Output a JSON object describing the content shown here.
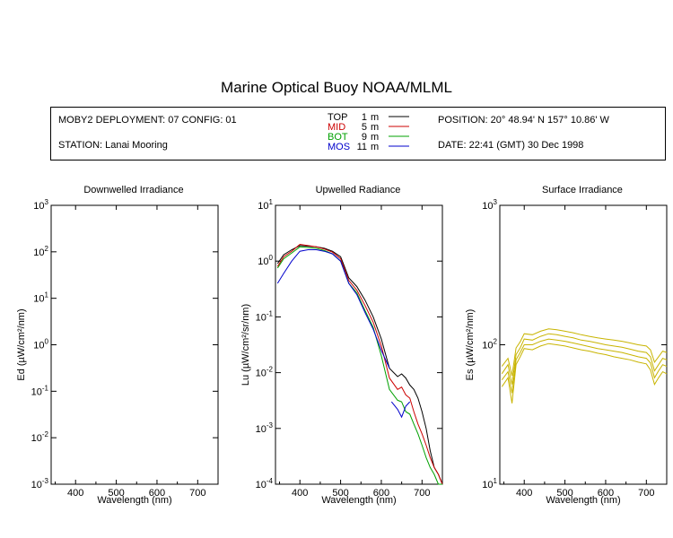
{
  "title": "Marine Optical Buoy NOAA/MLML",
  "info": {
    "deployment": "MOBY2 DEPLOYMENT: 07 CONFIG: 01",
    "station": "STATION: Lanai Mooring",
    "position": "POSITION: 20° 48.94' N   157° 10.86' W",
    "date": "DATE: 22:41 (GMT) 30 Dec 1998",
    "legend": [
      {
        "name": "TOP",
        "depth": "1",
        "unit": "m",
        "color": "#000000"
      },
      {
        "name": "MID",
        "depth": "5",
        "unit": "m",
        "color": "#cc0000"
      },
      {
        "name": "BOT",
        "depth": "9",
        "unit": "m",
        "color": "#00a000"
      },
      {
        "name": "MOS",
        "depth": "11",
        "unit": "m",
        "color": "#0000cc"
      }
    ]
  },
  "chart_data": [
    {
      "type": "line",
      "title": "Downwelled Irradiance",
      "xlabel": "Wavelength (nm)",
      "ylabel": "Ed  (µW/cm²/nm)",
      "xlim": [
        340,
        750
      ],
      "ylim": [
        0.001,
        1000
      ],
      "yscale": "log",
      "xticks": [
        "400",
        "500",
        "600",
        "700"
      ],
      "yticks": [
        "10^-3",
        "10^-2",
        "10^-1",
        "10^0",
        "10^1",
        "10^2",
        "10^3"
      ],
      "series": []
    },
    {
      "type": "line",
      "title": "Upwelled Radiance",
      "xlabel": "Wavelength (nm)",
      "ylabel": "Lu  (µW/cm²/sr/nm)",
      "xlim": [
        340,
        750
      ],
      "ylim": [
        0.0001,
        10
      ],
      "yscale": "log",
      "xticks": [
        "400",
        "500",
        "600",
        "700"
      ],
      "yticks": [
        "10^-4",
        "10^-3",
        "10^-2",
        "10^-1",
        "10^0",
        "10^1"
      ],
      "series": [
        {
          "name": "TOP",
          "color": "#000000",
          "x": [
            345,
            360,
            380,
            400,
            420,
            440,
            460,
            480,
            500,
            520,
            540,
            560,
            580,
            600,
            620,
            640,
            650,
            660,
            670,
            680,
            690,
            700,
            710,
            720,
            730,
            740,
            750
          ],
          "y": [
            0.9,
            1.3,
            1.6,
            1.9,
            1.85,
            1.8,
            1.7,
            1.5,
            1.2,
            0.5,
            0.35,
            0.2,
            0.1,
            0.04,
            0.012,
            0.0085,
            0.0095,
            0.008,
            0.006,
            0.005,
            0.0035,
            0.002,
            0.001,
            0.0004,
            0.0002,
            0.00015,
            0.0001
          ]
        },
        {
          "name": "MID",
          "color": "#cc0000",
          "x": [
            345,
            360,
            380,
            400,
            420,
            440,
            460,
            480,
            500,
            520,
            540,
            560,
            580,
            600,
            620,
            640,
            650,
            660,
            670,
            680,
            690,
            700,
            710,
            720,
            730,
            740,
            750
          ],
          "y": [
            0.8,
            1.2,
            1.5,
            2.0,
            1.9,
            1.8,
            1.65,
            1.45,
            1.1,
            0.45,
            0.3,
            0.16,
            0.08,
            0.03,
            0.008,
            0.005,
            0.0055,
            0.004,
            0.0035,
            0.002,
            0.0012,
            0.0008,
            0.0005,
            0.0003,
            0.0002,
            0.00015,
            0.0001
          ]
        },
        {
          "name": "BOT",
          "color": "#00a000",
          "x": [
            345,
            360,
            380,
            400,
            420,
            440,
            460,
            480,
            500,
            520,
            540,
            560,
            580,
            600,
            620,
            640,
            650,
            660,
            670,
            680,
            690,
            700,
            710,
            720,
            730,
            740,
            750
          ],
          "y": [
            0.75,
            1.1,
            1.4,
            1.8,
            1.75,
            1.7,
            1.55,
            1.35,
            1.0,
            0.4,
            0.27,
            0.13,
            0.065,
            0.02,
            0.005,
            0.0032,
            0.003,
            0.002,
            0.0018,
            0.0012,
            0.0008,
            0.0005,
            0.0003,
            0.0002,
            0.00015,
            0.0001,
            0.0001
          ]
        },
        {
          "name": "MOS",
          "color": "#0000cc",
          "x": [
            345,
            360,
            380,
            400,
            420,
            440,
            460,
            480,
            500,
            520,
            540,
            560,
            580,
            600,
            620
          ],
          "y": [
            0.4,
            0.6,
            1.0,
            1.5,
            1.6,
            1.6,
            1.5,
            1.35,
            1.0,
            0.4,
            0.25,
            0.12,
            0.06,
            0.025,
            0.012
          ]
        },
        {
          "name": "MOS",
          "color": "#0000cc",
          "x": [
            625,
            640,
            650,
            660,
            670
          ],
          "y": [
            0.003,
            0.0022,
            0.0016,
            0.0025,
            0.003
          ]
        }
      ]
    },
    {
      "type": "line",
      "title": "Surface Irradiance",
      "xlabel": "Wavelength (nm)",
      "ylabel": "Es  (µW/cm²/nm)",
      "xlim": [
        340,
        750
      ],
      "ylim": [
        10,
        1000
      ],
      "yscale": "log",
      "xticks": [
        "400",
        "500",
        "600",
        "700"
      ],
      "yticks": [
        "10^1",
        "10^2",
        "10^3"
      ],
      "series": [
        {
          "color": "#c8b400",
          "x": [
            345,
            360,
            370,
            380,
            390,
            400,
            420,
            440,
            460,
            480,
            500,
            520,
            540,
            560,
            580,
            600,
            620,
            640,
            660,
            680,
            700,
            710,
            720,
            730,
            740,
            750
          ],
          "y": [
            70,
            80,
            60,
            95,
            105,
            120,
            118,
            125,
            130,
            128,
            125,
            122,
            118,
            115,
            112,
            110,
            108,
            106,
            103,
            100,
            98,
            92,
            75,
            82,
            90,
            88
          ]
        },
        {
          "color": "#c8b400",
          "x": [
            345,
            360,
            370,
            380,
            390,
            400,
            420,
            440,
            460,
            480,
            500,
            520,
            540,
            560,
            580,
            600,
            620,
            640,
            660,
            680,
            700,
            710,
            720,
            730,
            740,
            750
          ],
          "y": [
            62,
            72,
            52,
            85,
            95,
            110,
            108,
            115,
            120,
            118,
            115,
            112,
            108,
            106,
            103,
            100,
            98,
            96,
            93,
            90,
            88,
            82,
            65,
            72,
            80,
            78
          ]
        },
        {
          "color": "#c8b400",
          "x": [
            345,
            360,
            370,
            380,
            390,
            400,
            420,
            440,
            460,
            480,
            500,
            520,
            540,
            560,
            580,
            600,
            620,
            640,
            660,
            680,
            700,
            710,
            720,
            730,
            740,
            750
          ],
          "y": [
            56,
            64,
            45,
            78,
            88,
            100,
            100,
            106,
            110,
            108,
            106,
            103,
            100,
            97,
            94,
            92,
            90,
            88,
            85,
            82,
            80,
            74,
            58,
            65,
            72,
            70
          ]
        },
        {
          "color": "#c8b400",
          "x": [
            345,
            360,
            370,
            380,
            390,
            400,
            420,
            440,
            460,
            480,
            500,
            520,
            540,
            560,
            580,
            600,
            620,
            640,
            660,
            680,
            700,
            710,
            720,
            730,
            740,
            750
          ],
          "y": [
            50,
            58,
            38,
            72,
            82,
            94,
            92,
            98,
            102,
            100,
            98,
            95,
            92,
            90,
            87,
            85,
            82,
            80,
            78,
            75,
            73,
            66,
            52,
            58,
            64,
            62
          ]
        }
      ]
    }
  ]
}
